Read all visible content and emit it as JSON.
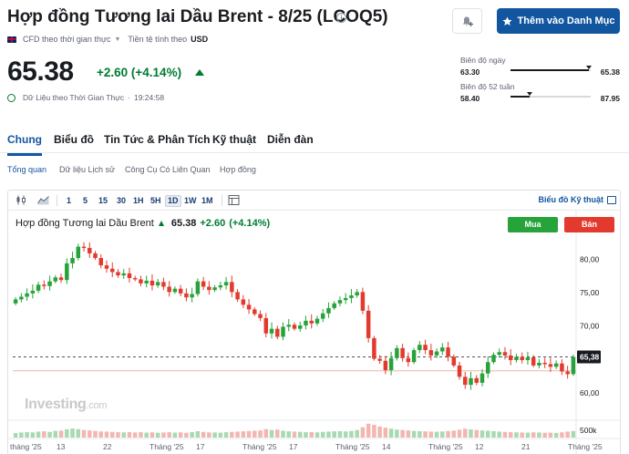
{
  "header": {
    "title": "Hợp đồng Tương lai Dầu Brent - 8/25 (LCOQ5)",
    "info_glyph": "i",
    "watch_label": "Thêm vào Danh Mục",
    "cfd_label": "CFD theo thời gian thực",
    "currency_label": "Tiền tệ tính theo",
    "currency": "USD"
  },
  "quote": {
    "price": "65.38",
    "change": "+2.60 (+4.14%)",
    "realtime_label": "Dữ Liệu theo Thời Gian Thực",
    "time": "19:24:58"
  },
  "day_range": {
    "label": "Biên độ ngày",
    "low": "63.30",
    "high": "65.38",
    "position": 0.98
  },
  "week52_range": {
    "label": "Biên độ 52 tuần",
    "low": "58.40",
    "high": "87.95",
    "position": 0.24
  },
  "tabs": [
    "Chung",
    "Biểu đồ",
    "Tin Tức & Phân Tích",
    "Kỹ thuật",
    "Diễn đàn"
  ],
  "subtabs": [
    "Tổng quan",
    "Dữ liệu Lịch sử",
    "Công Cụ Có Liên Quan",
    "Hợp đồng"
  ],
  "toolbar": {
    "intervals": [
      "1",
      "5",
      "15",
      "30",
      "1H",
      "5H",
      "1D",
      "1W",
      "1M"
    ],
    "active_interval": "1D",
    "advanced_label": "Biểu đồ Kỹ thuật"
  },
  "chart_header": {
    "name": "Hợp đồng Tương lai Dầu Brent",
    "price": "65.38",
    "change": "+2.60",
    "pct": "(+4.14%)",
    "buy_label": "Mua",
    "sell_label": "Bán"
  },
  "watermark": {
    "brand": "Investing",
    "suffix": ".com"
  },
  "colors": {
    "up": "#26a33a",
    "down": "#e23b2e",
    "accent": "#1256a0",
    "price_tag": "#181c21"
  },
  "chart_data": {
    "type": "candlestick",
    "y_ticks": [
      "80,00",
      "75,00",
      "70,00",
      "65,00",
      "60,00"
    ],
    "y_tick_values": [
      80,
      75,
      70,
      65,
      60
    ],
    "ylim": [
      57.8,
      82.8
    ],
    "last_price_label": "65,38",
    "last_price": 65.38,
    "reference_line": 63.3,
    "volume_label": "500k",
    "x_labels": [
      "tháng '25",
      "13",
      "22",
      "Tháng '25",
      "17",
      "Tháng '25",
      "17",
      "Tháng '25",
      "14",
      "Tháng '25",
      "12",
      "21",
      "Tháng '25"
    ],
    "closes": [
      74.0,
      74.4,
      74.9,
      75.3,
      76.2,
      76.0,
      76.7,
      77.3,
      76.9,
      79.4,
      80.2,
      81.9,
      81.7,
      80.9,
      80.2,
      79.1,
      78.6,
      78.1,
      77.6,
      77.9,
      77.2,
      77.0,
      76.4,
      76.8,
      76.1,
      76.6,
      75.9,
      75.1,
      75.6,
      74.9,
      74.3,
      74.8,
      76.7,
      75.9,
      75.4,
      75.8,
      76.1,
      76.6,
      75.1,
      74.0,
      73.2,
      72.5,
      71.8,
      71.2,
      68.9,
      69.6,
      68.4,
      69.9,
      70.2,
      69.6,
      70.1,
      70.8,
      70.4,
      71.1,
      71.9,
      72.7,
      73.4,
      73.9,
      74.2,
      74.6,
      75.1,
      72.3,
      68.2,
      65.1,
      64.8,
      63.4,
      65.2,
      66.7,
      65.2,
      64.6,
      66.4,
      67.2,
      66.4,
      65.6,
      66.2,
      66.8,
      65.4,
      64.1,
      62.4,
      61.2,
      62.2,
      61.5,
      62.9,
      64.6,
      65.7,
      66.1,
      65.6,
      64.9,
      65.4,
      64.9,
      65.3,
      64.1,
      64.5,
      64.3,
      63.9,
      64.4,
      63.2,
      62.8,
      65.38
    ],
    "volumes": [
      0.31,
      0.35,
      0.38,
      0.36,
      0.41,
      0.43,
      0.39,
      0.46,
      0.48,
      0.57,
      0.62,
      0.58,
      0.52,
      0.49,
      0.46,
      0.42,
      0.41,
      0.39,
      0.37,
      0.36,
      0.38,
      0.35,
      0.37,
      0.34,
      0.36,
      0.33,
      0.35,
      0.37,
      0.34,
      0.36,
      0.33,
      0.38,
      0.44,
      0.39,
      0.36,
      0.35,
      0.34,
      0.37,
      0.39,
      0.41,
      0.43,
      0.45,
      0.47,
      0.49,
      0.58,
      0.52,
      0.55,
      0.47,
      0.43,
      0.41,
      0.39,
      0.37,
      0.38,
      0.36,
      0.39,
      0.41,
      0.43,
      0.44,
      0.42,
      0.45,
      0.52,
      0.71,
      0.95,
      0.88,
      0.76,
      0.68,
      0.61,
      0.55,
      0.52,
      0.49,
      0.46,
      0.44,
      0.43,
      0.41,
      0.4,
      0.42,
      0.45,
      0.48,
      0.54,
      0.61,
      0.56,
      0.52,
      0.49,
      0.47,
      0.44,
      0.41,
      0.39,
      0.37,
      0.36,
      0.35,
      0.34,
      0.36,
      0.35,
      0.33,
      0.34,
      0.32,
      0.36,
      0.41,
      0.45
    ]
  }
}
